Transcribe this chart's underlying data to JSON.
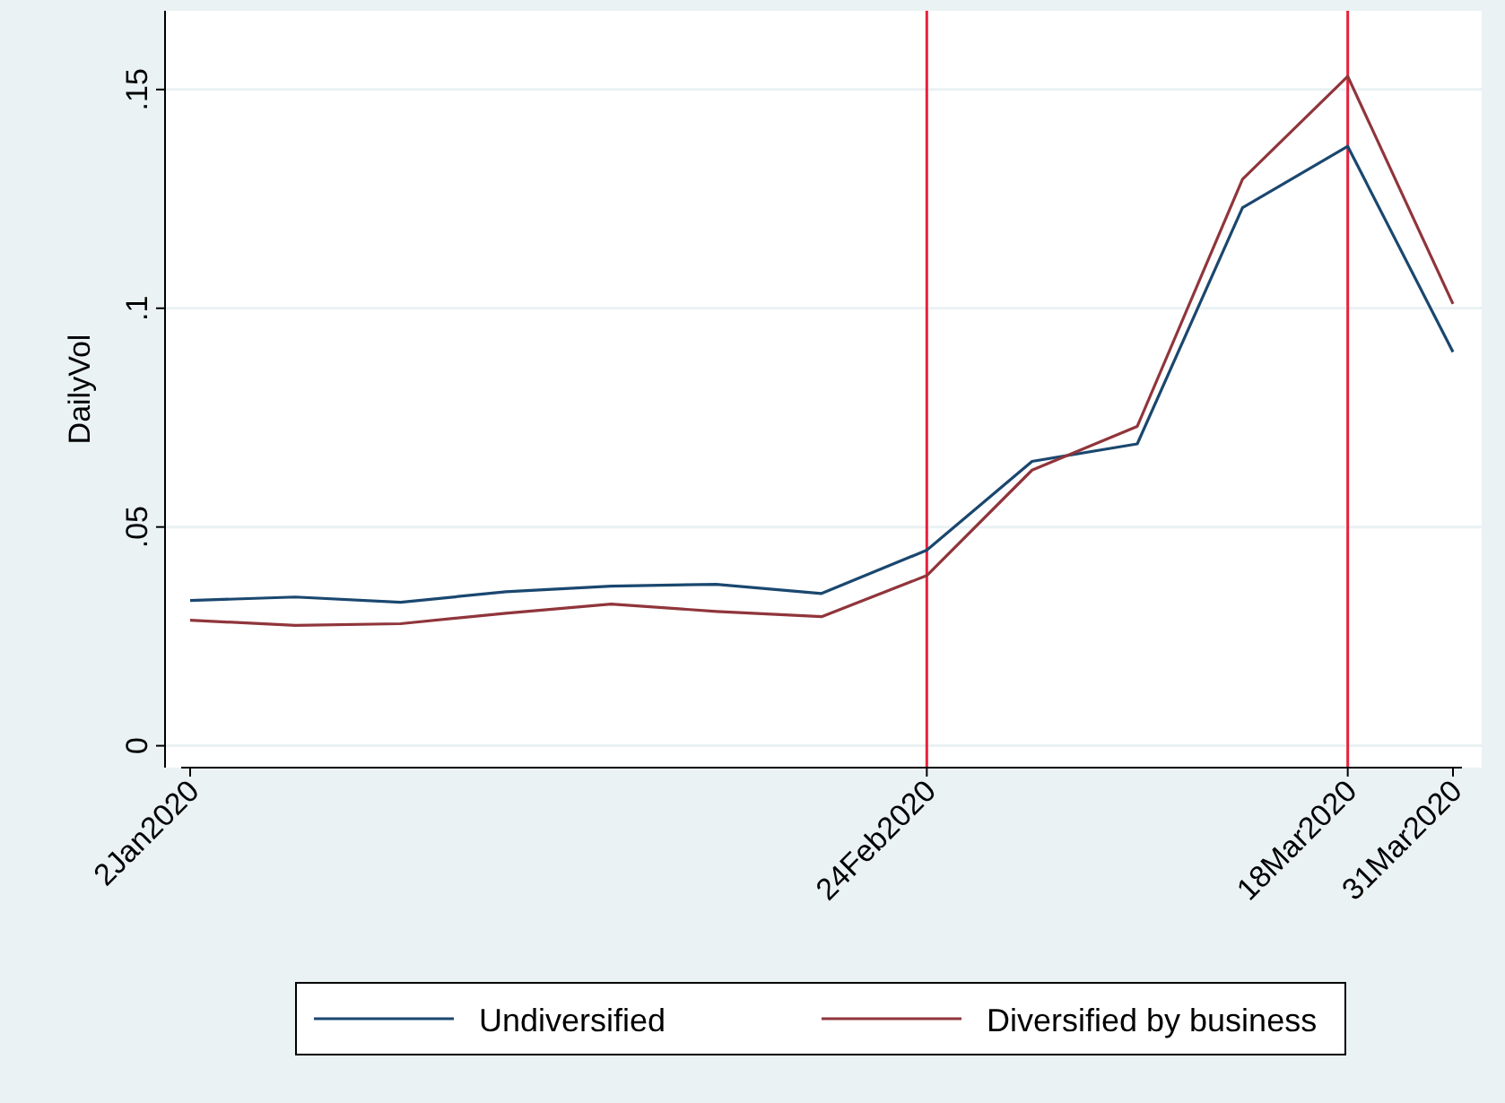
{
  "chart_data": {
    "type": "line",
    "ylabel": "DailyVol",
    "categories": [
      "2Jan2020",
      null,
      null,
      null,
      null,
      null,
      null,
      "24Feb2020",
      null,
      null,
      null,
      "18Mar2020",
      "31Mar2020"
    ],
    "series": [
      {
        "name": "Undiversified",
        "color": "#1a476f",
        "values": [
          0.0332,
          0.034,
          0.0328,
          0.0352,
          0.0365,
          0.0369,
          0.0348,
          0.0447,
          0.065,
          0.069,
          0.123,
          0.137,
          0.09
        ]
      },
      {
        "name": "Diversified by business",
        "color": "#90353b",
        "values": [
          0.0287,
          0.0275,
          0.0279,
          0.0303,
          0.0324,
          0.0307,
          0.0295,
          0.0389,
          0.063,
          0.073,
          0.1295,
          0.153,
          0.101
        ]
      }
    ],
    "ylim": [
      -0.005,
      0.168
    ],
    "yticks": [
      {
        "value": 0,
        "label": "0"
      },
      {
        "value": 0.05,
        "label": ".05"
      },
      {
        "value": 0.1,
        "label": ".1"
      },
      {
        "value": 0.15,
        "label": ".15"
      }
    ],
    "grid": "y",
    "legend": "bottom",
    "line_style": "solid",
    "ref_lines": [
      {
        "axis": "x",
        "value": "24Feb2020",
        "color": "#e8213b"
      },
      {
        "axis": "x",
        "value": "18Mar2020",
        "color": "#e8213b"
      }
    ]
  }
}
